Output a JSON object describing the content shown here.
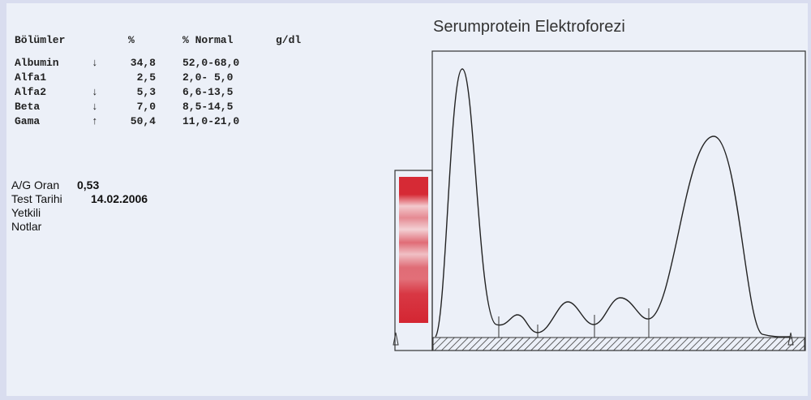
{
  "report": {
    "table": {
      "headers": [
        "Bölümler",
        "%",
        "% Normal",
        "g/dl"
      ],
      "rows": [
        [
          "Albumin",
          "↓",
          "34,8",
          "52,0-68,0"
        ],
        [
          "Alfa1",
          "",
          "2,5",
          "2,0- 5,0"
        ],
        [
          "Alfa2",
          "↓",
          "5,3",
          "6,6-13,5"
        ],
        [
          "Beta",
          "↓",
          "7,0",
          "8,5-14,5"
        ],
        [
          "Gama",
          "↑",
          "50,4",
          "11,0-21,0"
        ]
      ]
    },
    "info": [
      {
        "label": "A/G Oran",
        "value": "0,53"
      },
      {
        "label": "Test Tarihi",
        "value": "14.02.2006"
      },
      {
        "label": "Yetkili",
        "value": null
      },
      {
        "label": "Notlar",
        "value": null
      }
    ],
    "graph_title": "Serumprotein Elektroforezi"
  }
}
